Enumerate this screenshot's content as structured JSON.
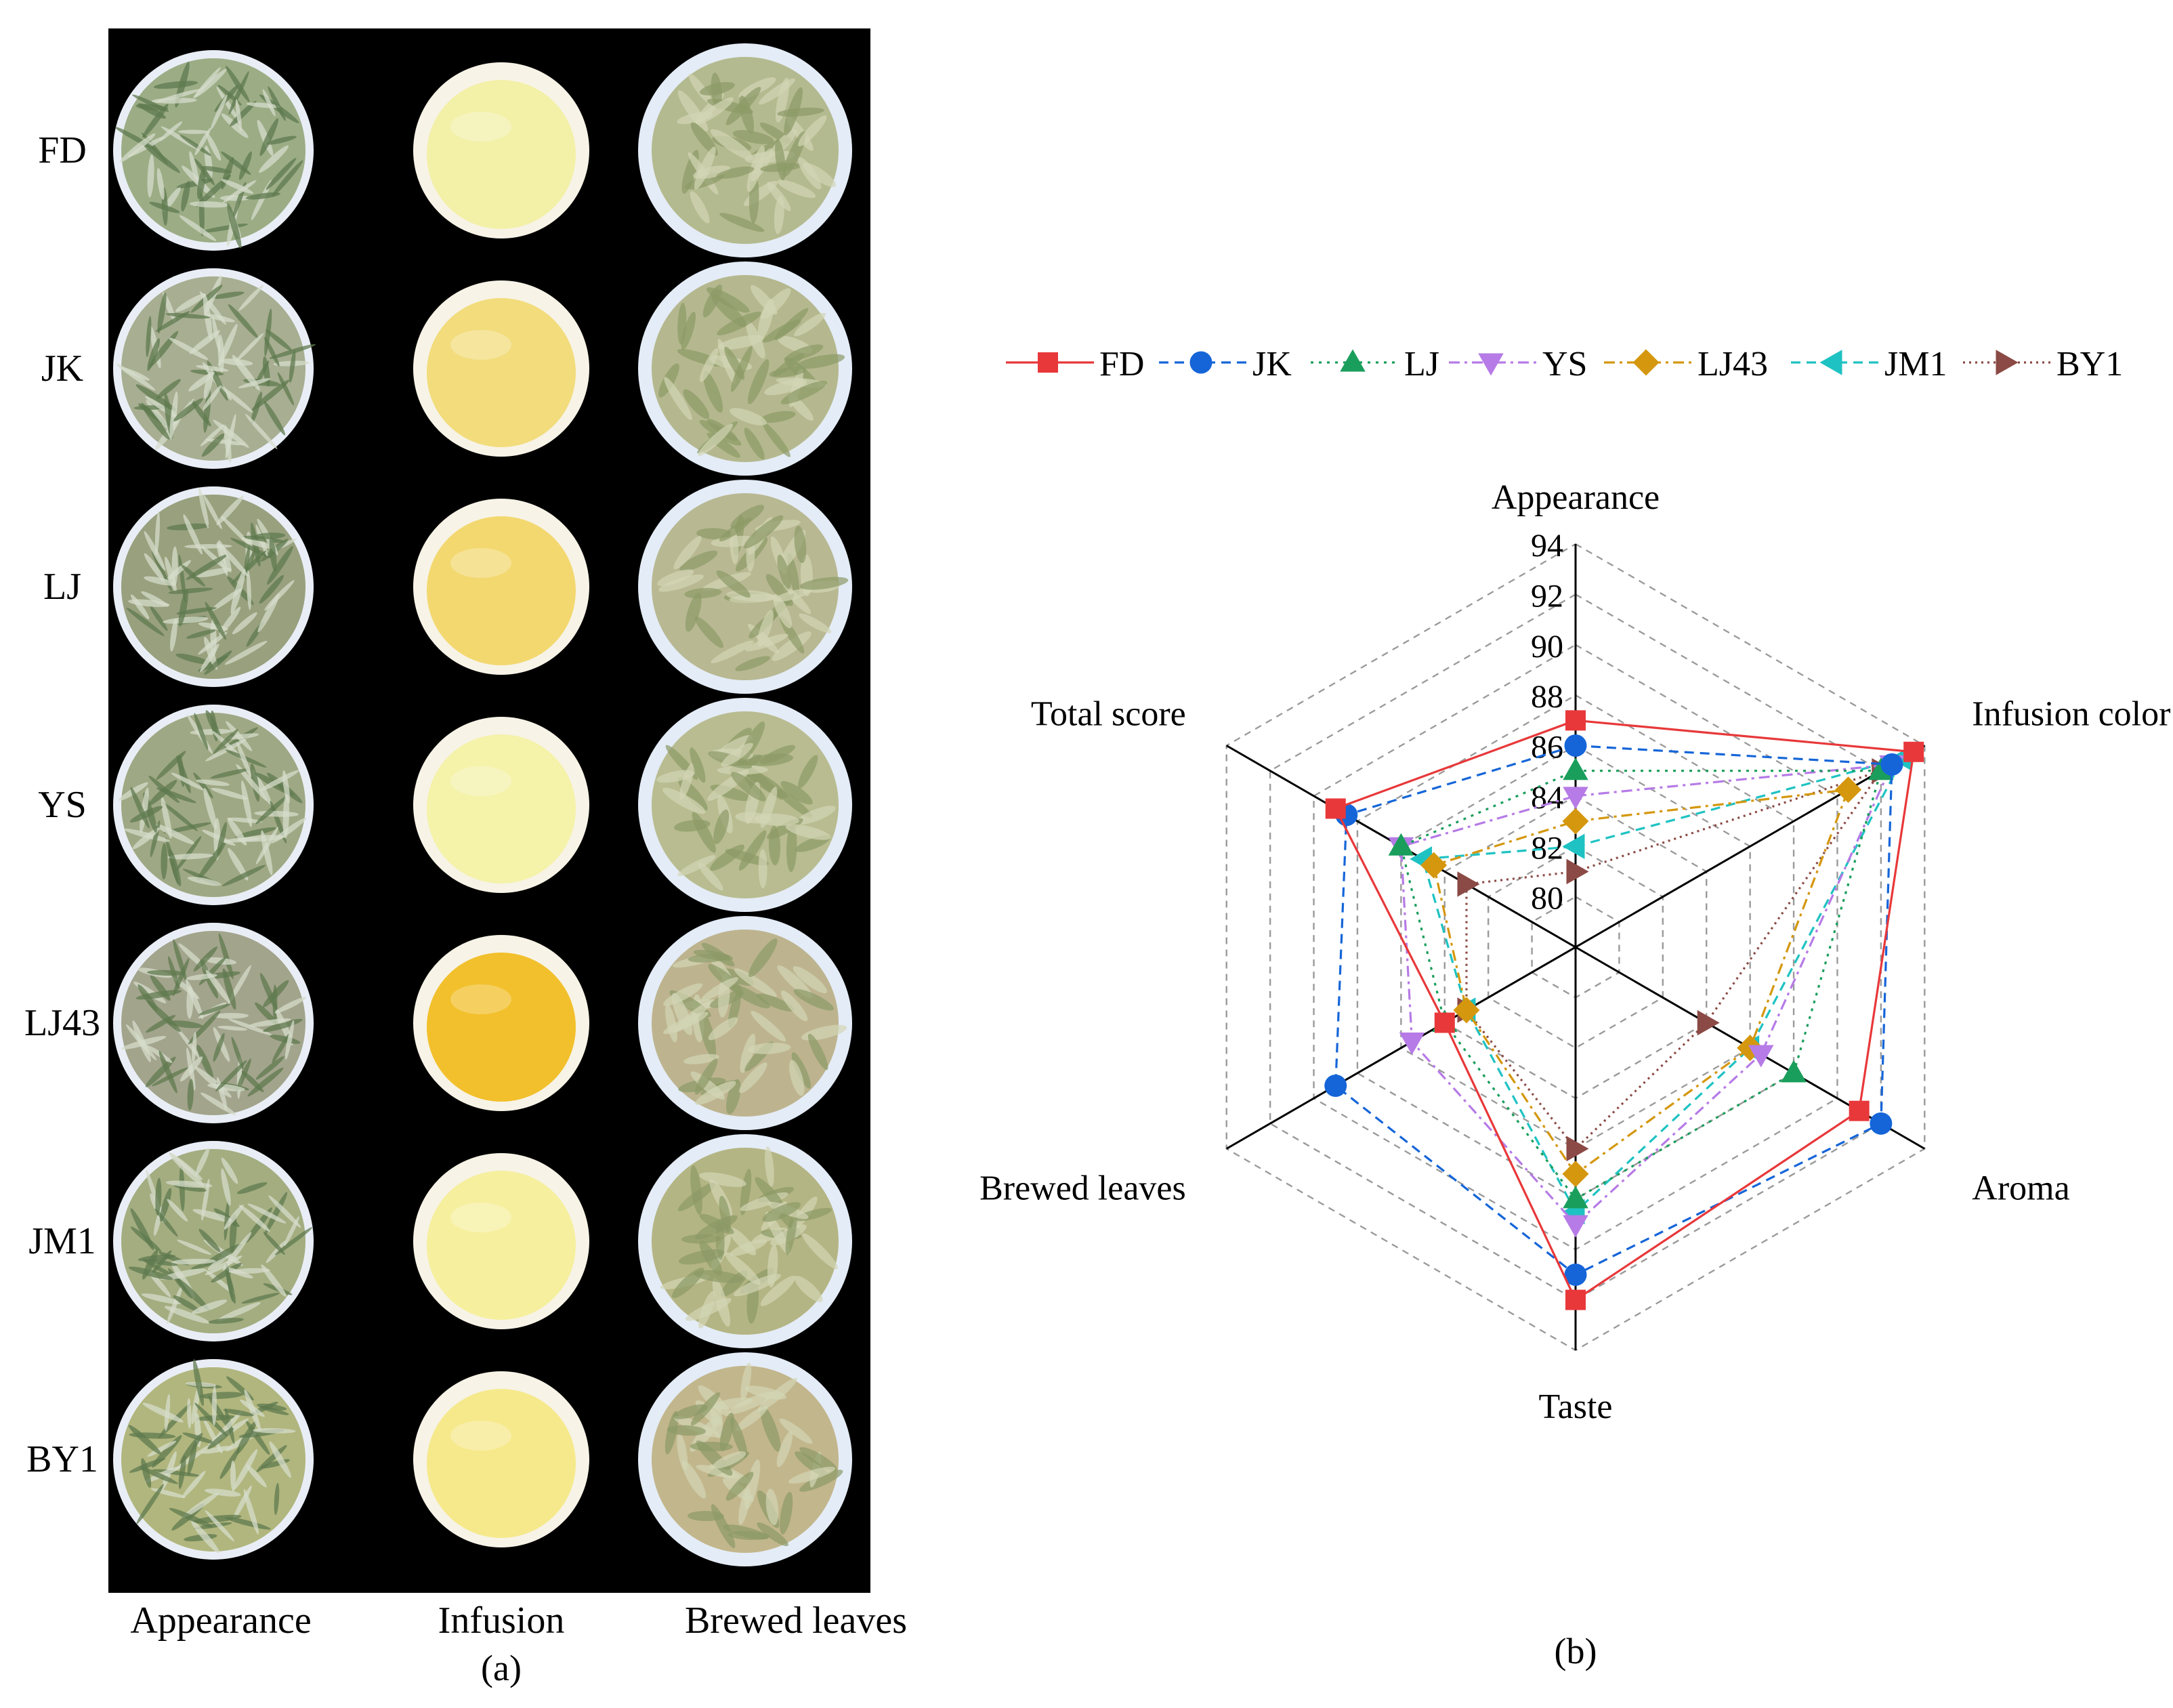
{
  "panel_a": {
    "caption": "(a)",
    "rows": [
      "FD",
      "JK",
      "LJ",
      "YS",
      "LJ43",
      "JM1",
      "BY1"
    ],
    "columns": [
      "Appearance",
      "Infusion",
      "Brewed leaves"
    ],
    "infusion_colors": [
      "#f3f0a8",
      "#f2dc7c",
      "#f3d870",
      "#f5f2aa",
      "#f2c02c",
      "#f6ef9e",
      "#f6e98c"
    ],
    "leaf_colors": [
      "#9cad86",
      "#a7ae91",
      "#98a07e",
      "#9fa884",
      "#a2a48c",
      "#a3ad80",
      "#b1b67e"
    ],
    "brewed_colors": [
      "#b4ba8f",
      "#b5b88e",
      "#b8b892",
      "#b8bc90",
      "#bdb48f",
      "#b4b584",
      "#c2b68c"
    ]
  },
  "panel_b": {
    "caption": "(b)"
  },
  "chart_data": {
    "type": "radar",
    "axes": [
      "Appearance",
      "Infusion color",
      "Aroma",
      "Taste",
      "Brewed leaves",
      "Total score"
    ],
    "rlim": [
      78,
      94
    ],
    "ticks": [
      80,
      82,
      84,
      86,
      88,
      90,
      92,
      94
    ],
    "grid": true,
    "legend_position": "top",
    "series": [
      {
        "name": "FD",
        "color": "#e8383a",
        "marker": "square",
        "dash": "solid",
        "values": [
          87,
          93.5,
          91,
          92,
          84,
          89
        ]
      },
      {
        "name": "JK",
        "color": "#1565d8",
        "marker": "circle",
        "dash": "dash",
        "values": [
          86,
          92.5,
          92,
          91,
          89,
          88.5
        ]
      },
      {
        "name": "LJ",
        "color": "#1a9e5c",
        "marker": "triangle-up",
        "dash": "dot",
        "values": [
          85,
          92,
          88,
          88,
          84,
          86
        ]
      },
      {
        "name": "YS",
        "color": "#b67be6",
        "marker": "triangle-down",
        "dash": "dashdot",
        "values": [
          84,
          92.5,
          86.5,
          89,
          85.5,
          86
        ]
      },
      {
        "name": "LJ43",
        "color": "#d4970e",
        "marker": "diamond",
        "dash": "dashdot",
        "values": [
          83,
          90.5,
          86,
          87,
          83,
          84.5
        ]
      },
      {
        "name": "JM1",
        "color": "#1fc2c2",
        "marker": "triangle-left",
        "dash": "dash",
        "values": [
          82,
          93,
          86,
          88.5,
          83,
          85
        ]
      },
      {
        "name": "BY1",
        "color": "#8b4a45",
        "marker": "triangle-right",
        "dash": "dotted",
        "values": [
          81,
          92,
          84,
          86,
          83,
          83
        ]
      }
    ]
  }
}
